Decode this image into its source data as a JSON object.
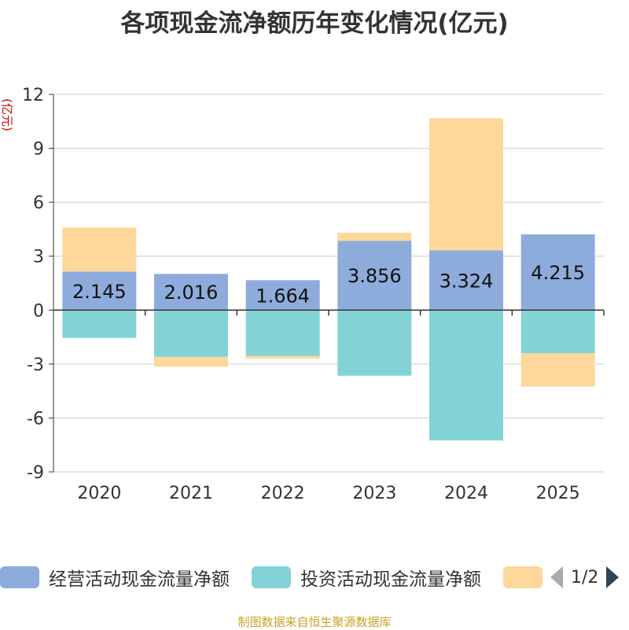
{
  "title": "各项现金流净额历年变化情况(亿元)",
  "unit_label": "(亿元)",
  "footer": "制图数据来自恒生聚源数据库",
  "legend": {
    "page_indicator": "1/2"
  },
  "colors": {
    "operating": "#8eacdb",
    "investing": "#83d3d6",
    "financing": "#fdd89a",
    "grid": "#cccccc",
    "axis": "#333333"
  },
  "chart_data": {
    "type": "bar",
    "stacked": true,
    "title": "各项现金流净额历年变化情况(亿元)",
    "ylabel": "(亿元)",
    "categories": [
      "2020",
      "2021",
      "2022",
      "2023",
      "2024",
      "2025"
    ],
    "ylim": [
      -9,
      12
    ],
    "yticks": [
      "12",
      "9",
      "6",
      "3",
      "0",
      "-3",
      "-6",
      "-9"
    ],
    "ytick_values": [
      12,
      9,
      6,
      3,
      0,
      -3,
      -6,
      -9
    ],
    "series": [
      {
        "name": "经营活动现金流量净额",
        "values": [
          2.145,
          2.016,
          1.664,
          3.856,
          3.324,
          4.215
        ],
        "labels": [
          "2.145",
          "2.016",
          "1.664",
          "3.856",
          "3.324",
          "4.215"
        ]
      },
      {
        "name": "投资活动现金流量净额",
        "values": [
          -1.55,
          -2.6,
          -2.55,
          -3.65,
          -7.25,
          -2.4
        ]
      },
      {
        "name": "",
        "values": [
          2.45,
          -0.55,
          -0.15,
          0.45,
          7.35,
          -1.85
        ]
      }
    ]
  }
}
